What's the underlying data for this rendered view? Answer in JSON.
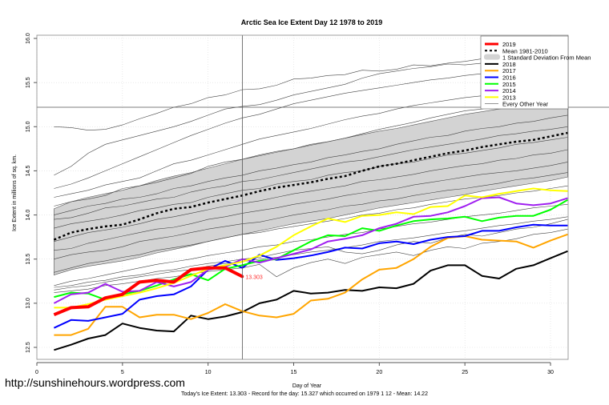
{
  "watermark": "http://sunshinehours.wordpress.com",
  "chart_data": {
    "type": "line",
    "title": "Arctic Sea Ice Extent Day 12 1978 to 2019",
    "xlabel": "Day of Year",
    "ylabel": "Ice Extent in millions of sq. km.",
    "footer": "Today's Ice Extent: 13.303  - Record for the day: 15.327 which occurred on 1979 1 12  - Mean: 14.22",
    "xlim": [
      0,
      32
    ],
    "ylim": [
      12.45,
      16.05
    ],
    "xticks": [
      0,
      5,
      10,
      15,
      20,
      25,
      30
    ],
    "yticks": [
      12.5,
      13.0,
      13.5,
      14.0,
      14.5,
      15.0,
      15.5,
      16.0
    ],
    "ytick_labels": [
      "12.5",
      "13.0",
      "13.5",
      "14.0",
      "14.5",
      "15.0",
      "15.5",
      "16.0"
    ],
    "grid": true,
    "vline_day": 12,
    "hline_value": 15.22,
    "current_label": "13.303",
    "legend_position": "top-right",
    "legend": [
      {
        "label": "2019",
        "color": "#ff0000",
        "style": "thick"
      },
      {
        "label": "Mean 1981-2010",
        "color": "#000000",
        "style": "dashed"
      },
      {
        "label": "1 Standard Deviation From Mean",
        "color": "#d3d3d3",
        "style": "box"
      },
      {
        "label": "2018",
        "color": "#000000",
        "style": "solid"
      },
      {
        "label": "2017",
        "color": "#ffa500",
        "style": "solid"
      },
      {
        "label": "2016",
        "color": "#0000ff",
        "style": "solid"
      },
      {
        "label": "2015",
        "color": "#00ff00",
        "style": "solid"
      },
      {
        "label": "2014",
        "color": "#a020f0",
        "style": "solid"
      },
      {
        "label": "2013",
        "color": "#ffff00",
        "style": "solid"
      },
      {
        "label": "Every Other Year",
        "color": "#555555",
        "style": "thin"
      }
    ],
    "x": [
      1,
      2,
      3,
      4,
      5,
      6,
      7,
      8,
      9,
      10,
      11,
      12,
      13,
      14,
      15,
      16,
      17,
      18,
      19,
      20,
      21,
      22,
      23,
      24,
      25,
      26,
      27,
      28,
      29,
      30,
      31
    ],
    "mean": [
      13.72,
      13.8,
      13.84,
      13.87,
      13.89,
      13.95,
      14.02,
      14.07,
      14.09,
      14.14,
      14.18,
      14.22,
      14.27,
      14.31,
      14.34,
      14.37,
      14.41,
      14.44,
      14.5,
      14.55,
      14.58,
      14.62,
      14.66,
      14.7,
      14.73,
      14.77,
      14.8,
      14.83,
      14.85,
      14.89,
      14.93
    ],
    "sd_upper": [
      14.07,
      14.15,
      14.2,
      14.24,
      14.28,
      14.33,
      14.39,
      14.44,
      14.48,
      14.53,
      14.58,
      14.63,
      14.67,
      14.71,
      14.75,
      14.79,
      14.83,
      14.87,
      14.91,
      14.95,
      14.98,
      15.02,
      15.06,
      15.1,
      15.14,
      15.17,
      15.2,
      15.24,
      15.28,
      15.32,
      15.36
    ],
    "sd_lower": [
      13.32,
      13.38,
      13.42,
      13.45,
      13.48,
      13.52,
      13.57,
      13.61,
      13.65,
      13.7,
      13.74,
      13.78,
      13.82,
      13.86,
      13.9,
      13.93,
      13.96,
      14.0,
      14.04,
      14.08,
      14.11,
      14.14,
      14.17,
      14.2,
      14.23,
      14.27,
      14.3,
      14.33,
      14.36,
      14.39,
      14.43
    ],
    "series": [
      {
        "name": "2019",
        "color": "#ff0000",
        "width": 4,
        "values": [
          12.87,
          12.95,
          12.96,
          13.06,
          13.1,
          13.24,
          13.26,
          13.24,
          13.38,
          13.4,
          13.4,
          13.303
        ]
      },
      {
        "name": "2018",
        "color": "#000000",
        "width": 2,
        "values": [
          12.47,
          12.53,
          12.6,
          12.64,
          12.77,
          12.72,
          12.69,
          12.68,
          12.86,
          12.82,
          12.85,
          12.9,
          13.0,
          13.04,
          13.14,
          13.11,
          13.12,
          13.15,
          13.14,
          13.18,
          13.17,
          13.22,
          13.37,
          13.43,
          13.43,
          13.31,
          13.28,
          13.39,
          13.43,
          13.51,
          13.59
        ]
      },
      {
        "name": "2017",
        "color": "#ffa500",
        "width": 2,
        "values": [
          12.64,
          12.64,
          12.71,
          12.96,
          12.96,
          12.84,
          12.87,
          12.87,
          12.82,
          12.89,
          12.99,
          12.91,
          12.86,
          12.84,
          12.88,
          13.03,
          13.05,
          13.12,
          13.27,
          13.38,
          13.4,
          13.5,
          13.64,
          13.74,
          13.76,
          13.72,
          13.71,
          13.7,
          13.63,
          13.71,
          13.78
        ]
      },
      {
        "name": "2016",
        "color": "#0000ff",
        "width": 2,
        "values": [
          12.72,
          12.81,
          12.8,
          12.84,
          12.88,
          13.04,
          13.08,
          13.1,
          13.19,
          13.38,
          13.48,
          13.4,
          13.55,
          13.49,
          13.51,
          13.54,
          13.58,
          13.63,
          13.62,
          13.68,
          13.7,
          13.67,
          13.72,
          13.75,
          13.76,
          13.82,
          13.82,
          13.86,
          13.89,
          13.88,
          13.88
        ]
      },
      {
        "name": "2015",
        "color": "#00ff00",
        "width": 2,
        "values": [
          13.07,
          13.12,
          13.11,
          13.04,
          13.1,
          13.14,
          13.2,
          13.27,
          13.33,
          13.26,
          13.39,
          13.43,
          13.48,
          13.5,
          13.6,
          13.7,
          13.77,
          13.76,
          13.85,
          13.82,
          13.88,
          13.93,
          13.95,
          13.96,
          13.98,
          13.93,
          13.97,
          13.99,
          13.99,
          14.06,
          14.17
        ]
      },
      {
        "name": "2014",
        "color": "#a020f0",
        "width": 2,
        "values": [
          13.0,
          13.1,
          13.12,
          13.22,
          13.13,
          13.14,
          13.24,
          13.19,
          13.24,
          13.38,
          13.41,
          13.5,
          13.46,
          13.51,
          13.56,
          13.61,
          13.7,
          13.73,
          13.77,
          13.85,
          13.9,
          13.98,
          13.99,
          14.03,
          14.1,
          14.19,
          14.2,
          14.13,
          14.11,
          14.13,
          14.19
        ]
      },
      {
        "name": "2013",
        "color": "#ffff00",
        "width": 2,
        "values": [
          12.95,
          12.95,
          12.99,
          13.04,
          13.08,
          13.12,
          13.17,
          13.23,
          13.31,
          13.39,
          13.43,
          13.47,
          13.54,
          13.64,
          13.77,
          13.87,
          13.96,
          13.92,
          13.99,
          14.0,
          14.03,
          14.01,
          14.09,
          14.1,
          14.22,
          14.2,
          14.24,
          14.27,
          14.3,
          14.28,
          14.27
        ]
      }
    ],
    "every_other_year": [
      {
        "values": [
          15.0,
          14.99,
          14.96,
          14.97,
          15.02,
          15.09,
          15.15,
          15.22,
          15.26,
          15.33,
          15.36,
          15.42,
          15.43,
          15.47,
          15.54,
          15.55,
          15.58,
          15.59,
          15.64,
          15.63,
          15.65,
          15.7,
          15.69,
          15.72,
          15.74,
          15.77,
          15.78,
          15.8,
          15.81,
          15.83,
          15.86
        ]
      },
      {
        "values": [
          14.45,
          14.55,
          14.7,
          14.8,
          14.85,
          14.9,
          14.95,
          15.0,
          15.06,
          15.13,
          15.2,
          15.23,
          15.25,
          15.3,
          15.36,
          15.4,
          15.44,
          15.48,
          15.55,
          15.6,
          15.63,
          15.66,
          15.68,
          15.71,
          15.7,
          15.72,
          15.75,
          15.77,
          15.8,
          15.82,
          15.84
        ]
      },
      {
        "values": [
          14.3,
          14.35,
          14.42,
          14.5,
          14.58,
          14.66,
          14.74,
          14.82,
          14.9,
          14.97,
          15.04,
          15.1,
          15.14,
          15.2,
          15.26,
          15.3,
          15.34,
          15.38,
          15.41,
          15.44,
          15.47,
          15.5,
          15.53,
          15.55,
          15.58,
          15.6,
          15.62,
          15.64,
          15.66,
          15.68,
          15.7
        ]
      },
      {
        "values": [
          14.2,
          14.24,
          14.28,
          14.34,
          14.38,
          14.42,
          14.5,
          14.58,
          14.62,
          14.68,
          14.74,
          14.8,
          14.86,
          14.9,
          14.94,
          14.98,
          15.03,
          15.08,
          15.12,
          15.15,
          15.2,
          15.24,
          15.27,
          15.3,
          15.33,
          15.35,
          15.38,
          15.4,
          15.43,
          15.45,
          15.48
        ]
      },
      {
        "values": [
          14.1,
          14.15,
          14.18,
          14.22,
          14.3,
          14.33,
          14.37,
          14.42,
          14.47,
          14.55,
          14.6,
          14.63,
          14.68,
          14.72,
          14.75,
          14.8,
          14.83,
          14.87,
          14.92,
          14.97,
          15.01,
          15.05,
          15.1,
          15.14,
          15.18,
          15.2,
          15.24,
          15.27,
          15.3,
          15.32,
          15.35
        ]
      },
      {
        "values": [
          14.0,
          14.05,
          14.1,
          14.13,
          14.18,
          14.2,
          14.24,
          14.3,
          14.33,
          14.38,
          14.42,
          14.45,
          14.5,
          14.53,
          14.57,
          14.6,
          14.65,
          14.68,
          14.72,
          14.75,
          14.8,
          14.84,
          14.88,
          14.9,
          14.95,
          14.98,
          15.0,
          15.04,
          15.06,
          15.1,
          15.13
        ]
      },
      {
        "values": [
          13.95,
          13.97,
          14.02,
          14.08,
          14.1,
          14.14,
          14.18,
          14.2,
          14.26,
          14.3,
          14.33,
          14.38,
          14.4,
          14.44,
          14.48,
          14.52,
          14.56,
          14.6,
          14.62,
          14.66,
          14.7,
          14.74,
          14.77,
          14.8,
          14.83,
          14.86,
          14.9,
          14.92,
          14.95,
          14.97,
          15.0
        ]
      },
      {
        "values": [
          13.85,
          13.9,
          13.93,
          13.96,
          14.0,
          14.05,
          14.08,
          14.12,
          14.14,
          14.2,
          14.24,
          14.28,
          14.3,
          14.35,
          14.38,
          14.4,
          14.45,
          14.48,
          14.5,
          14.55,
          14.58,
          14.6,
          14.64,
          14.68,
          14.7,
          14.73,
          14.76,
          14.8,
          14.82,
          14.85,
          14.88
        ]
      },
      {
        "values": [
          13.7,
          13.75,
          13.8,
          13.83,
          13.86,
          13.9,
          13.95,
          13.98,
          14.02,
          14.06,
          14.1,
          14.13,
          14.16,
          14.2,
          14.24,
          14.27,
          14.3,
          14.33,
          14.38,
          14.4,
          14.43,
          14.46,
          14.5,
          14.53,
          14.56,
          14.58,
          14.62,
          14.64,
          14.68,
          14.7,
          14.74
        ]
      },
      {
        "values": [
          13.6,
          13.62,
          13.68,
          13.72,
          13.76,
          13.8,
          13.84,
          13.86,
          13.9,
          13.95,
          13.98,
          14.02,
          14.05,
          14.08,
          14.12,
          14.15,
          14.18,
          14.22,
          14.25,
          14.28,
          14.3,
          14.34,
          14.37,
          14.4,
          14.43,
          14.46,
          14.48,
          14.5,
          14.53,
          14.56,
          14.6
        ]
      },
      {
        "values": [
          13.5,
          13.55,
          13.58,
          13.6,
          13.64,
          13.7,
          13.73,
          13.76,
          13.8,
          13.84,
          13.87,
          13.9,
          13.92,
          13.96,
          14.0,
          14.03,
          14.06,
          14.1,
          14.12,
          14.16,
          14.18,
          14.22,
          14.25,
          14.28,
          14.3,
          14.33,
          14.36,
          14.4,
          14.42,
          14.45,
          14.48
        ]
      },
      {
        "values": [
          13.35,
          13.4,
          13.45,
          13.48,
          13.52,
          13.55,
          13.6,
          13.63,
          13.66,
          13.7,
          13.74,
          13.78,
          13.8,
          13.84,
          13.87,
          13.9,
          13.93,
          13.96,
          14.0,
          14.02,
          14.06,
          14.08,
          14.12,
          14.15,
          14.18,
          14.2,
          14.22,
          14.25,
          14.27,
          14.3,
          14.33
        ]
      },
      {
        "values": [
          13.2,
          13.25,
          13.28,
          13.32,
          13.36,
          13.4,
          13.44,
          13.47,
          13.5,
          13.54,
          13.57,
          13.6,
          13.64,
          13.66,
          13.7,
          13.72,
          13.75,
          13.78,
          13.8,
          13.84,
          13.87,
          13.9,
          13.92,
          13.95,
          13.98,
          14.0,
          14.02,
          14.05,
          14.08,
          14.1,
          14.12
        ]
      },
      {
        "values": [
          13.15,
          13.18,
          13.2,
          13.24,
          13.27,
          13.3,
          13.33,
          13.36,
          13.38,
          13.42,
          13.45,
          13.47,
          13.5,
          13.52,
          13.55,
          13.58,
          13.6,
          13.63,
          13.66,
          13.7,
          13.72,
          13.74,
          13.77,
          13.8,
          13.82,
          13.85,
          13.88,
          13.9,
          13.93,
          13.95,
          13.98
        ]
      },
      {
        "values": [
          13.12,
          13.14,
          13.16,
          13.2,
          13.22,
          13.25,
          13.28,
          13.3,
          13.33,
          13.36,
          13.38,
          13.4,
          13.44,
          13.3,
          13.4,
          13.46,
          13.5,
          13.45,
          13.52,
          13.55,
          13.58,
          13.54,
          13.6,
          13.64,
          13.62,
          13.68,
          13.7,
          13.73,
          13.78,
          13.8,
          13.84
        ]
      },
      {
        "values": [
          13.18,
          13.2,
          13.24,
          13.26,
          13.3,
          13.32,
          13.36,
          13.38,
          13.42,
          13.45,
          13.47,
          13.5,
          13.52,
          13.56,
          13.6,
          13.62,
          13.64,
          13.58,
          13.56,
          13.6,
          13.66,
          13.7,
          13.68,
          13.74,
          13.78,
          13.76,
          13.8,
          13.84,
          13.86,
          13.9,
          13.95
        ]
      }
    ]
  }
}
